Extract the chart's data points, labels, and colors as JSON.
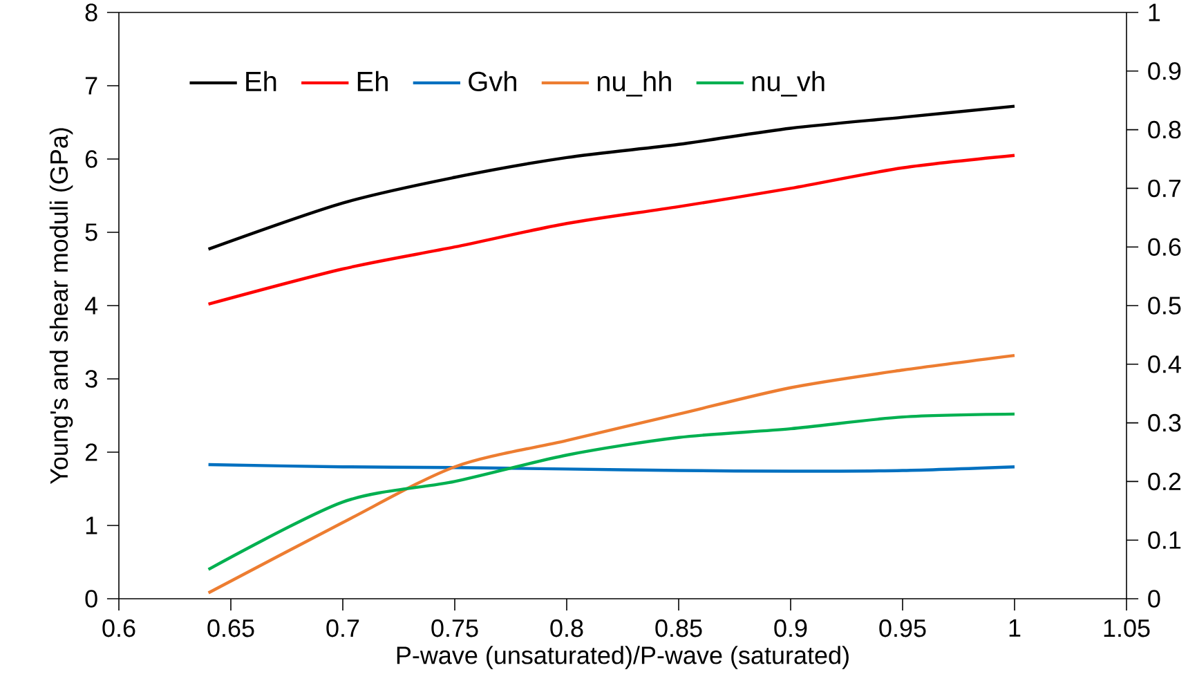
{
  "chart_data": {
    "type": "line",
    "xlabel": "P-wave (unsaturated)/P-wave (saturated)",
    "ylabel": "Young's and shear moduli (GPa)",
    "xlim": [
      0.6,
      1.05
    ],
    "xticks": [
      0.6,
      0.65,
      0.7,
      0.75,
      0.8,
      0.85,
      0.9,
      0.95,
      1,
      1.05
    ],
    "ylim": [
      0,
      8
    ],
    "yticks": [
      0,
      1,
      2,
      3,
      4,
      5,
      6,
      7,
      8
    ],
    "y2lim": [
      0,
      1
    ],
    "y2ticks": [
      0,
      0.1,
      0.2,
      0.3,
      0.4,
      0.5,
      0.6,
      0.7,
      0.8,
      0.9,
      1
    ],
    "x": [
      0.64,
      0.7,
      0.75,
      0.8,
      0.85,
      0.9,
      0.95,
      1
    ],
    "grid": false,
    "legend": "top left",
    "marker": "none",
    "line_style": "solid",
    "series": [
      {
        "name": "Eh",
        "color": "#000000",
        "values": [
          4.77,
          5.4,
          5.75,
          6.02,
          6.2,
          6.42,
          6.57,
          6.72
        ]
      },
      {
        "name": "Eh",
        "color": "#ff0000",
        "values": [
          4.02,
          4.5,
          4.8,
          5.12,
          5.35,
          5.6,
          5.88,
          6.05
        ]
      },
      {
        "name": "Gvh",
        "color": "#0070c0",
        "values": [
          1.83,
          1.8,
          1.79,
          1.77,
          1.75,
          1.74,
          1.75,
          1.8
        ]
      },
      {
        "name": "nu_hh",
        "color": "#ed7d31",
        "axis": "y2",
        "values": [
          0.01,
          0.13,
          0.225,
          0.27,
          0.315,
          0.36,
          0.39,
          0.415
        ]
      },
      {
        "name": "nu_vh",
        "color": "#00b050",
        "axis": "y2",
        "values": [
          0.05,
          0.165,
          0.2,
          0.245,
          0.275,
          0.29,
          0.31,
          0.315
        ]
      }
    ]
  }
}
